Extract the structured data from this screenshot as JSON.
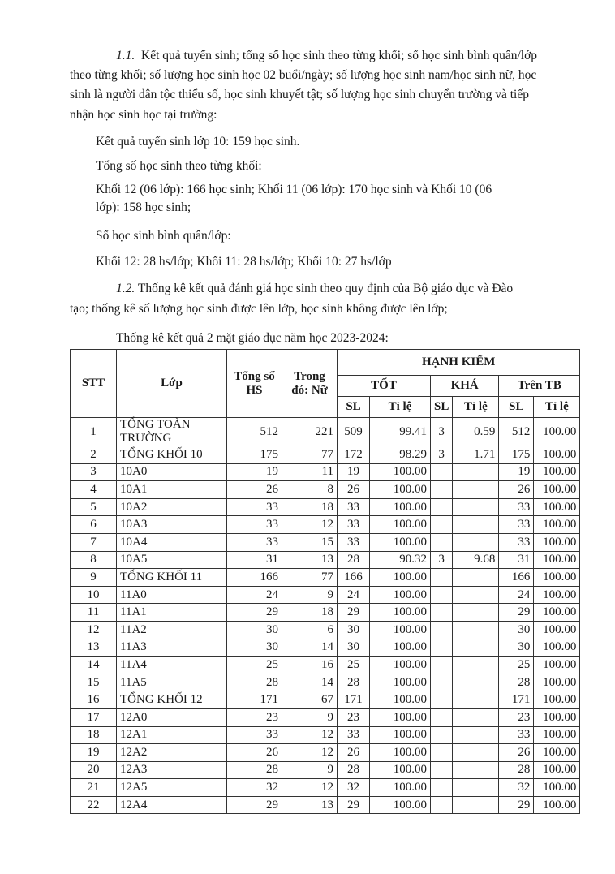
{
  "section_1_1": {
    "heading_number": "1.1.",
    "lines": [
      "Kết quả tuyển sinh; tổng số học sinh theo từng khối; số học sinh bình quân/lớp",
      "theo từng khối; số lượng học sinh học 02 buổi/ngày; số lượng học sinh nam/học sinh nữ, học",
      "sinh là người dân tộc thiểu số, học sinh khuyết tật; số lượng học sinh chuyển trường và tiếp",
      "nhận học sinh học tại trường:"
    ],
    "enrollment": "Kết quả tuyển sinh lớp 10: 159 học sinh.",
    "total_by_grade_label": "Tổng số học sinh theo từng khối:",
    "total_by_grade_line1": "Khối 12 (06 lớp): 166 học sinh; Khối 11 (06 lớp): 170 học sinh và Khối 10 (06",
    "total_by_grade_line2": "lớp): 158 học sinh;",
    "avg_label": "Số học sinh bình quân/lớp:",
    "avg_values": "Khối 12: 28 hs/lớp; Khối 11: 28 hs/lớp; Khối 10: 27 hs/lớp"
  },
  "section_1_2": {
    "heading_number": "1.2.",
    "line1": "Thống kê kết quả đánh giá học sinh theo quy định của Bộ giáo dục và Đào",
    "line2": "tạo; thống kê số lượng học sinh được lên lớp, học sinh không được lên lớp;",
    "table_intro": "Thống kê kết quả 2 mặt giáo dục năm học 2023-2024:"
  },
  "table": {
    "headers": {
      "stt": "STT",
      "lop": "Lớp",
      "tong": "Tổng số HS",
      "nu": "Trong đó: Nữ",
      "hanh_kiem": "HẠNH KIỂM",
      "tot": "TỐT",
      "kha": "KHÁ",
      "tren_tb": "Trên TB",
      "sl": "SL",
      "ti_le": "Tỉ lệ"
    },
    "rows": [
      [
        "1",
        "TỔNG TOÀN TRƯỜNG",
        "512",
        "221",
        "509",
        "99.41",
        "3",
        "0.59",
        "512",
        "100.00"
      ],
      [
        "2",
        "TỔNG KHỐI 10",
        "175",
        "77",
        "172",
        "98.29",
        "3",
        "1.71",
        "175",
        "100.00"
      ],
      [
        "3",
        "10A0",
        "19",
        "11",
        "19",
        "100.00",
        "",
        "",
        "19",
        "100.00"
      ],
      [
        "4",
        "10A1",
        "26",
        "8",
        "26",
        "100.00",
        "",
        "",
        "26",
        "100.00"
      ],
      [
        "5",
        "10A2",
        "33",
        "18",
        "33",
        "100.00",
        "",
        "",
        "33",
        "100.00"
      ],
      [
        "6",
        "10A3",
        "33",
        "12",
        "33",
        "100.00",
        "",
        "",
        "33",
        "100.00"
      ],
      [
        "7",
        "10A4",
        "33",
        "15",
        "33",
        "100.00",
        "",
        "",
        "33",
        "100.00"
      ],
      [
        "8",
        "10A5",
        "31",
        "13",
        "28",
        "90.32",
        "3",
        "9.68",
        "31",
        "100.00"
      ],
      [
        "9",
        "TỔNG KHỐI 11",
        "166",
        "77",
        "166",
        "100.00",
        "",
        "",
        "166",
        "100.00"
      ],
      [
        "10",
        "11A0",
        "24",
        "9",
        "24",
        "100.00",
        "",
        "",
        "24",
        "100.00"
      ],
      [
        "11",
        "11A1",
        "29",
        "18",
        "29",
        "100.00",
        "",
        "",
        "29",
        "100.00"
      ],
      [
        "12",
        "11A2",
        "30",
        "6",
        "30",
        "100.00",
        "",
        "",
        "30",
        "100.00"
      ],
      [
        "13",
        "11A3",
        "30",
        "14",
        "30",
        "100.00",
        "",
        "",
        "30",
        "100.00"
      ],
      [
        "14",
        "11A4",
        "25",
        "16",
        "25",
        "100.00",
        "",
        "",
        "25",
        "100.00"
      ],
      [
        "15",
        "11A5",
        "28",
        "14",
        "28",
        "100.00",
        "",
        "",
        "28",
        "100.00"
      ],
      [
        "16",
        "TỔNG KHỐI 12",
        "171",
        "67",
        "171",
        "100.00",
        "",
        "",
        "171",
        "100.00"
      ],
      [
        "17",
        "12A0",
        "23",
        "9",
        "23",
        "100.00",
        "",
        "",
        "23",
        "100.00"
      ],
      [
        "18",
        "12A1",
        "33",
        "12",
        "33",
        "100.00",
        "",
        "",
        "33",
        "100.00"
      ],
      [
        "19",
        "12A2",
        "26",
        "12",
        "26",
        "100.00",
        "",
        "",
        "26",
        "100.00"
      ],
      [
        "20",
        "12A3",
        "28",
        "9",
        "28",
        "100.00",
        "",
        "",
        "28",
        "100.00"
      ],
      [
        "21",
        "12A5",
        "32",
        "12",
        "32",
        "100.00",
        "",
        "",
        "32",
        "100.00"
      ],
      [
        "22",
        "12A4",
        "29",
        "13",
        "29",
        "100.00",
        "",
        "",
        "29",
        "100.00"
      ]
    ]
  }
}
